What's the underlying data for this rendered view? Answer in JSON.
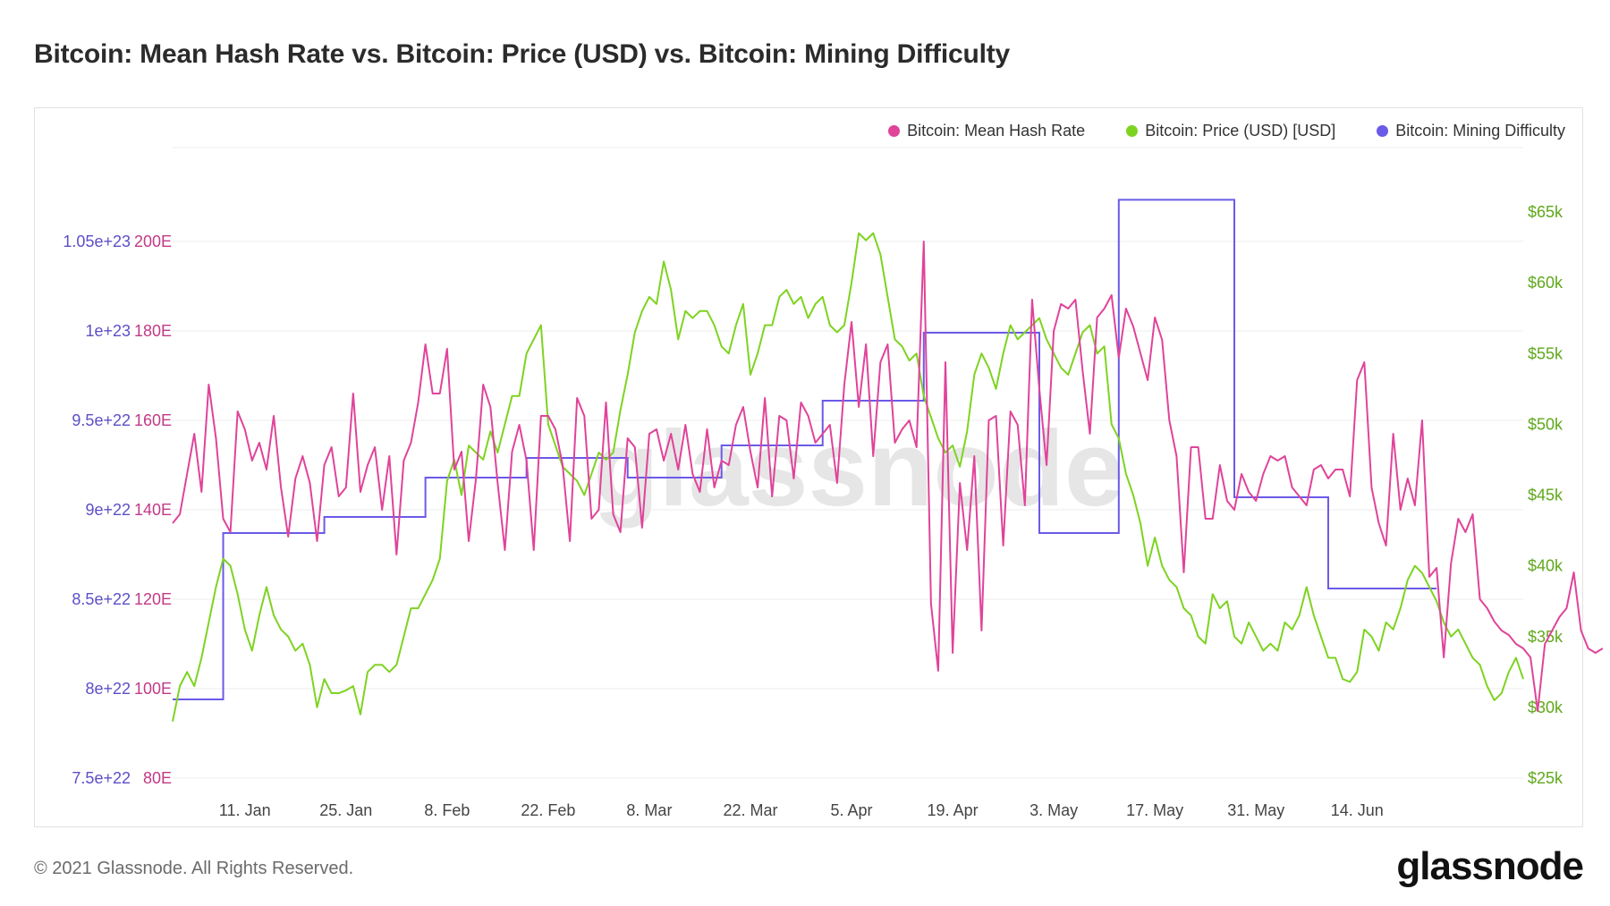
{
  "title": "Bitcoin: Mean Hash Rate vs. Bitcoin: Price (USD) vs. Bitcoin: Mining Difficulty",
  "footer": {
    "copyright": "© 2021 Glassnode. All Rights Reserved.",
    "brand": "glassnode"
  },
  "watermark": "glassnode",
  "colors": {
    "hashrate": "#e0439a",
    "price": "#7ed321",
    "difficulty": "#6a5ae8",
    "grid": "#ececec",
    "axis_text": "#444444"
  },
  "chart_data": {
    "type": "line",
    "title": "Bitcoin: Mean Hash Rate vs. Bitcoin: Price (USD) vs. Bitcoin: Mining Difficulty",
    "x_start": "2021-01-01",
    "x_end": "2021-06-24",
    "x_ticks": [
      {
        "label": "11. Jan",
        "day": 10
      },
      {
        "label": "25. Jan",
        "day": 24
      },
      {
        "label": "8. Feb",
        "day": 38
      },
      {
        "label": "22. Feb",
        "day": 52
      },
      {
        "label": "8. Mar",
        "day": 66
      },
      {
        "label": "22. Mar",
        "day": 80
      },
      {
        "label": "5. Apr",
        "day": 94
      },
      {
        "label": "19. Apr",
        "day": 108
      },
      {
        "label": "3. May",
        "day": 122
      },
      {
        "label": "17. May",
        "day": 136
      },
      {
        "label": "31. May",
        "day": 150
      },
      {
        "label": "14. Jun",
        "day": 164
      }
    ],
    "axes": {
      "hashrate": {
        "ylim": [
          80,
          200
        ],
        "ticks": [
          "80E",
          "100E",
          "120E",
          "140E",
          "160E",
          "180E",
          "200E"
        ],
        "tick_values": [
          80,
          100,
          120,
          140,
          160,
          180,
          200
        ]
      },
      "difficulty": {
        "ylim": [
          7.5e+22,
          1.05e+23
        ],
        "ticks": [
          "7.5e+22",
          "8e+22",
          "8.5e+22",
          "9e+22",
          "9.5e+22",
          "1e+23",
          "1.05e+23"
        ],
        "tick_values": [
          7.5e+22,
          8e+22,
          8.5e+22,
          9e+22,
          9.5e+22,
          1e+23,
          1.05e+23
        ]
      },
      "price": {
        "ylim": [
          25000,
          65000
        ],
        "ticks": [
          "$25k",
          "$30k",
          "$35k",
          "$40k",
          "$45k",
          "$50k",
          "$55k",
          "$60k",
          "$65k"
        ],
        "tick_values": [
          25000,
          30000,
          35000,
          40000,
          45000,
          50000,
          55000,
          60000,
          65000
        ]
      }
    },
    "series": [
      {
        "name": "Bitcoin: Mean Hash Rate",
        "axis": "hashrate",
        "unit": "E",
        "values": [
          137,
          139,
          148,
          157,
          144,
          168,
          156,
          138,
          135,
          162,
          158,
          151,
          155,
          149,
          161,
          145,
          134,
          147,
          152,
          146,
          133,
          150,
          154,
          143,
          145,
          166,
          144,
          150,
          154,
          140,
          152,
          130,
          151,
          155,
          164,
          177,
          166,
          166,
          176,
          149,
          153,
          133,
          147,
          168,
          163,
          146,
          131,
          153,
          159,
          151,
          131,
          161,
          161,
          158,
          150,
          133,
          165,
          161,
          138,
          140,
          164,
          139,
          135,
          156,
          154,
          136,
          157,
          158,
          151,
          157,
          149,
          159,
          148,
          144,
          158,
          145,
          151,
          150,
          159,
          163,
          153,
          145,
          165,
          143,
          161,
          160,
          147,
          164,
          161,
          155,
          157,
          159,
          146,
          168,
          182,
          163,
          177,
          152,
          173,
          177,
          155,
          158,
          160,
          154,
          200,
          119,
          104,
          173,
          108,
          146,
          131,
          152,
          113,
          160,
          161,
          132,
          162,
          159,
          141,
          187,
          167,
          150,
          180,
          186,
          185,
          187,
          171,
          157,
          183,
          185,
          188,
          174,
          185,
          181,
          175,
          169,
          183,
          178,
          160,
          152,
          126,
          154,
          154,
          138,
          138,
          150,
          142,
          140,
          148,
          144,
          142,
          148,
          152,
          151,
          152,
          145,
          143,
          141,
          149,
          150,
          147,
          149,
          149,
          143,
          169,
          173,
          145,
          137,
          132,
          157,
          140,
          147,
          141,
          160,
          125,
          127,
          107,
          128,
          138,
          135,
          139,
          120,
          118,
          115,
          113,
          112,
          110,
          109,
          107,
          95,
          110,
          113,
          116,
          118,
          126,
          113,
          109,
          108,
          109
        ]
      },
      {
        "name": "Bitcoin: Price (USD) [USD]",
        "axis": "price",
        "unit": "USD",
        "values": [
          29000,
          31500,
          32500,
          31500,
          33500,
          36000,
          38500,
          40500,
          40000,
          38000,
          35500,
          34000,
          36500,
          38500,
          36500,
          35500,
          35000,
          34000,
          34500,
          33000,
          30000,
          32000,
          31000,
          31000,
          31200,
          31500,
          29500,
          32500,
          33000,
          33000,
          32500,
          33000,
          35000,
          37000,
          37000,
          38000,
          39000,
          40500,
          46000,
          47500,
          45000,
          48500,
          48000,
          47500,
          49500,
          48000,
          50000,
          52000,
          52000,
          55000,
          56000,
          57000,
          50000,
          48500,
          47000,
          46500,
          46000,
          45000,
          46500,
          48000,
          47500,
          48000,
          51000,
          53500,
          56500,
          58000,
          59000,
          58500,
          61500,
          59500,
          56000,
          58000,
          57500,
          58000,
          58000,
          57000,
          55500,
          55000,
          57000,
          58500,
          53500,
          55000,
          57000,
          57000,
          59000,
          59500,
          58500,
          59000,
          57500,
          58500,
          59000,
          57000,
          56500,
          57000,
          60000,
          63500,
          63000,
          63500,
          62000,
          59000,
          56000,
          55500,
          54500,
          55000,
          52000,
          50500,
          49000,
          48000,
          48500,
          47000,
          49500,
          53500,
          55000,
          54000,
          52500,
          55000,
          57000,
          56000,
          56500,
          57000,
          57500,
          56000,
          55000,
          54000,
          53500,
          55000,
          56500,
          57000,
          55000,
          55500,
          50000,
          49000,
          46500,
          45000,
          43000,
          40000,
          42000,
          40000,
          39000,
          38500,
          37000,
          36500,
          35000,
          34500,
          38000,
          37000,
          37500,
          35000,
          34500,
          36000,
          35000,
          34000,
          34500,
          34000,
          36000,
          35500,
          36500,
          38500,
          36500,
          35000,
          33500,
          33500,
          32000,
          31800,
          32500,
          35500,
          35000,
          34000,
          36000,
          35500,
          37000,
          39000,
          40000,
          39500,
          38500,
          37500,
          36000,
          35000,
          35500,
          34500,
          33500,
          33000,
          31500,
          30500,
          31000,
          32500,
          33500,
          32000
        ]
      },
      {
        "name": "Bitcoin: Mining Difficulty",
        "axis": "difficulty",
        "unit": "",
        "steps": [
          {
            "day": 0,
            "value": 7.94e+22
          },
          {
            "day": 7,
            "value": 8.87e+22
          },
          {
            "day": 21,
            "value": 8.96e+22
          },
          {
            "day": 35,
            "value": 9.18e+22
          },
          {
            "day": 49,
            "value": 9.29e+22
          },
          {
            "day": 63,
            "value": 9.18e+22
          },
          {
            "day": 76,
            "value": 9.36e+22
          },
          {
            "day": 90,
            "value": 9.61e+22
          },
          {
            "day": 104,
            "value": 9.99e+22
          },
          {
            "day": 120,
            "value": 8.87e+22
          },
          {
            "day": 131,
            "value": 1.0733e+23
          },
          {
            "day": 147,
            "value": 9.07e+22
          },
          {
            "day": 160,
            "value": 8.56e+22
          },
          {
            "day": 175,
            "value": 8.56e+22
          }
        ]
      }
    ]
  }
}
